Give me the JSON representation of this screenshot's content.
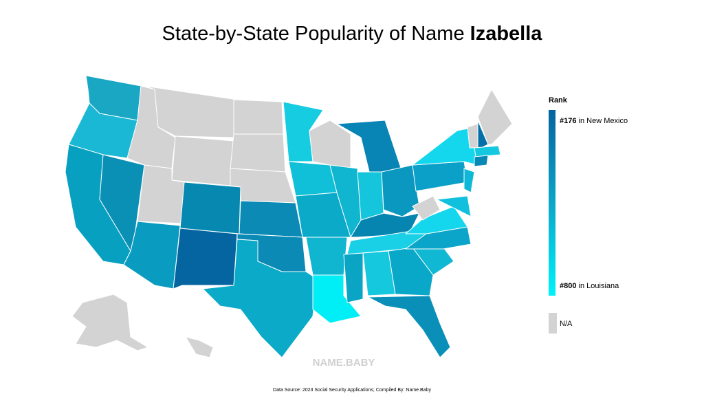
{
  "header": {
    "title": "State-by-State Popularity of Name ",
    "name": "Izabella"
  },
  "legend": {
    "heading": "Rank",
    "top_rank": "#176",
    "top_state": " in New Mexico",
    "bottom_rank": "#800",
    "bottom_state": " in Louisiana",
    "na": "N/A"
  },
  "watermark": "NAME.BABY",
  "source": "Data Source: 2023 Social Security Applications; Compiled By: Name.Baby"
}
